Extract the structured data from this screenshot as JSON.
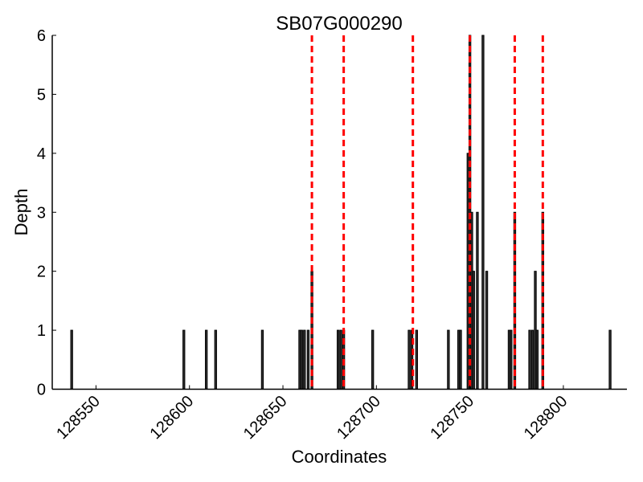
{
  "chart_data": {
    "type": "bar",
    "title": "SB07G000290",
    "xlabel": "Coordinates",
    "ylabel": "Depth",
    "xlim": [
      128526.6,
      128834
    ],
    "ylim": [
      0,
      6
    ],
    "xticks": [
      128550,
      128600,
      128650,
      128700,
      128750,
      128800
    ],
    "yticks": [
      0,
      1,
      2,
      3,
      4,
      5,
      6
    ],
    "grid": false,
    "bar_width": 1,
    "bar_color": "#333333",
    "vline_color": "#ff0000",
    "x": [
      128537,
      128597,
      128609,
      128614,
      128639,
      128659,
      128660,
      128661.5,
      128663.5,
      128665.5,
      128679.5,
      128681,
      128682.5,
      128698,
      128717.5,
      128719,
      128721.5,
      128738.5,
      128744,
      128745,
      128749,
      128750,
      128751,
      128752,
      128754,
      128757,
      128759,
      128771,
      128772,
      128774,
      128782,
      128783.5,
      128785,
      128786,
      128789,
      128825
    ],
    "values": [
      1,
      1,
      1,
      1,
      1,
      1,
      1,
      1,
      1,
      2,
      1,
      1,
      1,
      1,
      1,
      1,
      1,
      1,
      1,
      1,
      4,
      6,
      3,
      2,
      3,
      6,
      2,
      1,
      1,
      3,
      1,
      1,
      2,
      1,
      3,
      1
    ],
    "vlines": [
      128665.5,
      128682.5,
      128719.5,
      128750,
      128774,
      128789
    ]
  }
}
